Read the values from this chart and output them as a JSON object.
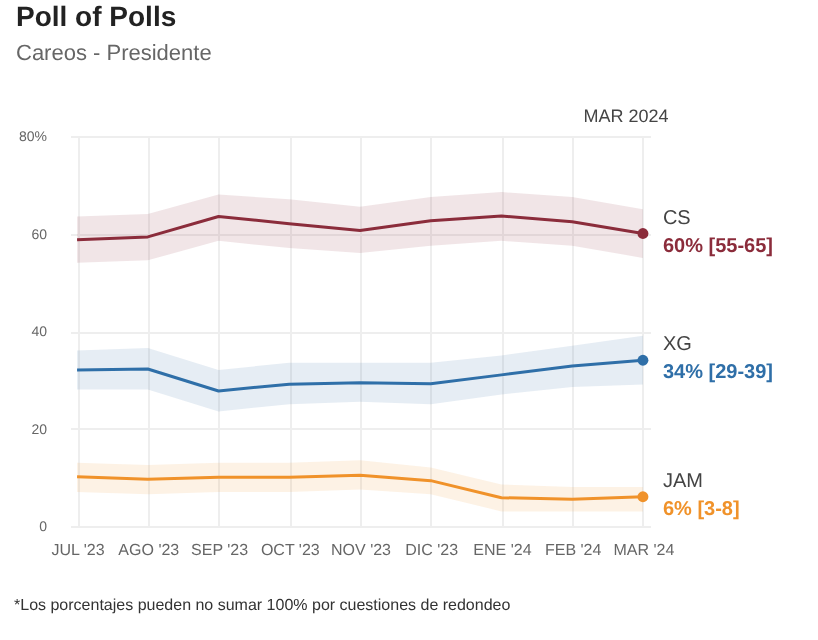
{
  "chart_data": {
    "type": "line",
    "title": "Poll of Polls",
    "subtitle": "Careos - Presidente",
    "categories": [
      "JUL '23",
      "AGO '23",
      "SEP '23",
      "OCT '23",
      "NOV '23",
      "DIC '23",
      "ENE '24",
      "FEB '24",
      "MAR '24"
    ],
    "series": [
      {
        "name": "CS",
        "color": "#8b2c3b",
        "values": [
          58.7,
          59.3,
          63.5,
          62,
          60.6,
          62.6,
          63.6,
          62.4,
          60
        ],
        "lower": [
          54,
          54.5,
          58.5,
          57,
          56,
          57.5,
          58.5,
          57.5,
          55
        ],
        "upper": [
          63.5,
          64,
          68,
          67,
          65.5,
          67.5,
          68.5,
          67.5,
          65
        ],
        "value_labels": [
          null,
          null,
          null,
          null,
          null,
          null,
          null,
          null,
          "60% [55-65]"
        ]
      },
      {
        "name": "XG",
        "color": "#2f6fa8",
        "values": [
          32,
          32.2,
          27.7,
          29.1,
          29.4,
          29.2,
          31,
          32.8,
          34
        ],
        "lower": [
          28,
          28,
          23.5,
          25,
          25.5,
          25,
          27,
          28.5,
          29
        ],
        "upper": [
          36,
          36.5,
          32,
          33.5,
          33.5,
          33.5,
          35,
          37,
          39
        ],
        "value_labels": [
          null,
          null,
          null,
          null,
          null,
          null,
          null,
          null,
          "34% [29-39]"
        ]
      },
      {
        "name": "JAM",
        "color": "#f0922a",
        "values": [
          10.1,
          9.6,
          10,
          10,
          10.4,
          9.3,
          5.8,
          5.5,
          6
        ],
        "lower": [
          7,
          6.5,
          7,
          7,
          7.5,
          6.5,
          3,
          3,
          3
        ],
        "upper": [
          13,
          12.5,
          13,
          13,
          13.5,
          12,
          8.5,
          8,
          8
        ],
        "value_labels": [
          null,
          null,
          null,
          null,
          null,
          null,
          null,
          null,
          "6% [3-8]"
        ]
      }
    ],
    "ylim": [
      0,
      80
    ],
    "yticks": [
      0,
      20,
      40,
      60,
      {
        "value": 80,
        "label": "80%"
      }
    ],
    "grid": true,
    "marker": "none",
    "line_style": "solid",
    "annotations": [
      "MAR 2024",
      "*Los porcentajes pueden no sumar 100% por cuestiones de redondeo"
    ]
  }
}
